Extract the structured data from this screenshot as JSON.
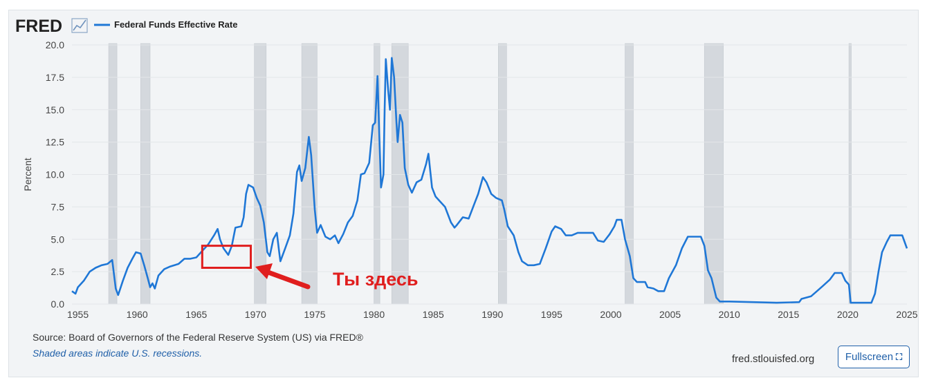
{
  "header": {
    "logo_text": "FRED",
    "logo_icon": "line-chart-icon",
    "series_label": "Federal Funds Effective Rate"
  },
  "annotation": {
    "label": "Ты здесь",
    "color": "#e01e1e"
  },
  "footer": {
    "source": "Source: Board of Governors of the Federal Reserve System (US) via FRED®",
    "recession_note": "Shaded areas indicate U.S. recessions.",
    "site": "fred.stlouisfed.org",
    "fullscreen_label": "Fullscreen",
    "fullscreen_icon": "expand-icon"
  },
  "colors": {
    "line": "#1f77d6",
    "recession": "#d4d8dd",
    "brand_text": "#222222",
    "link": "#1f5fa8"
  },
  "chart_data": {
    "type": "line",
    "title": "",
    "xlabel": "",
    "ylabel": "Percent",
    "xlim": [
      1954.5,
      2025.0
    ],
    "ylim": [
      0,
      20
    ],
    "x_ticks": [
      1955,
      1960,
      1965,
      1970,
      1975,
      1980,
      1985,
      1990,
      1995,
      2000,
      2005,
      2010,
      2015,
      2020,
      2025
    ],
    "x_tick_labels": [
      "1955",
      "1960",
      "1965",
      "1970",
      "1975",
      "1980",
      "1985",
      "1990",
      "1995",
      "2000",
      "2005",
      "2010",
      "2015",
      "2020",
      "2025"
    ],
    "y_ticks": [
      0,
      2.5,
      5,
      7.5,
      10,
      12.5,
      15,
      17.5,
      20
    ],
    "y_tick_labels": [
      "0.0",
      "2.5",
      "5.0",
      "7.5",
      "10.0",
      "12.5",
      "15.0",
      "17.5",
      "20.0"
    ],
    "grid": "horizontal",
    "legend": "top-left",
    "recessions": [
      [
        1957.6,
        1958.3
      ],
      [
        1960.3,
        1961.1
      ],
      [
        1969.9,
        1970.9
      ],
      [
        1973.9,
        1975.2
      ],
      [
        1980.0,
        1980.5
      ],
      [
        1981.5,
        1982.9
      ],
      [
        1990.5,
        1991.2
      ],
      [
        2001.2,
        2001.9
      ],
      [
        2007.9,
        2009.5
      ],
      [
        2020.1,
        2020.3
      ]
    ],
    "highlight_box": {
      "x": [
        1965.5,
        1969.6
      ],
      "y": [
        2.8,
        4.5
      ]
    },
    "series": [
      {
        "name": "Federal Funds Effective Rate",
        "points": [
          [
            1954.5,
            1.0
          ],
          [
            1954.8,
            0.8
          ],
          [
            1955.0,
            1.3
          ],
          [
            1955.5,
            1.8
          ],
          [
            1956.0,
            2.5
          ],
          [
            1956.5,
            2.8
          ],
          [
            1957.0,
            3.0
          ],
          [
            1957.5,
            3.1
          ],
          [
            1957.9,
            3.4
          ],
          [
            1958.2,
            1.2
          ],
          [
            1958.4,
            0.7
          ],
          [
            1958.8,
            1.8
          ],
          [
            1959.2,
            2.8
          ],
          [
            1959.6,
            3.5
          ],
          [
            1959.9,
            4.0
          ],
          [
            1960.3,
            3.9
          ],
          [
            1960.6,
            3.0
          ],
          [
            1960.9,
            2.0
          ],
          [
            1961.1,
            1.3
          ],
          [
            1961.3,
            1.6
          ],
          [
            1961.5,
            1.2
          ],
          [
            1961.8,
            2.2
          ],
          [
            1962.3,
            2.7
          ],
          [
            1962.8,
            2.9
          ],
          [
            1963.5,
            3.1
          ],
          [
            1964.0,
            3.5
          ],
          [
            1964.5,
            3.5
          ],
          [
            1965.0,
            3.6
          ],
          [
            1965.5,
            4.1
          ],
          [
            1966.0,
            4.6
          ],
          [
            1966.5,
            5.3
          ],
          [
            1966.8,
            5.8
          ],
          [
            1967.0,
            5.0
          ],
          [
            1967.3,
            4.3
          ],
          [
            1967.7,
            3.8
          ],
          [
            1968.0,
            4.5
          ],
          [
            1968.3,
            5.9
          ],
          [
            1968.8,
            6.0
          ],
          [
            1969.0,
            6.7
          ],
          [
            1969.2,
            8.5
          ],
          [
            1969.4,
            9.2
          ],
          [
            1969.8,
            9.0
          ],
          [
            1970.1,
            8.2
          ],
          [
            1970.4,
            7.6
          ],
          [
            1970.7,
            6.3
          ],
          [
            1971.0,
            4.0
          ],
          [
            1971.2,
            3.7
          ],
          [
            1971.5,
            5.0
          ],
          [
            1971.8,
            5.5
          ],
          [
            1972.0,
            4.0
          ],
          [
            1972.1,
            3.3
          ],
          [
            1972.5,
            4.3
          ],
          [
            1972.9,
            5.3
          ],
          [
            1973.2,
            7.0
          ],
          [
            1973.5,
            10.2
          ],
          [
            1973.7,
            10.7
          ],
          [
            1973.9,
            9.5
          ],
          [
            1974.2,
            10.5
          ],
          [
            1974.5,
            12.9
          ],
          [
            1974.7,
            11.5
          ],
          [
            1975.0,
            7.3
          ],
          [
            1975.2,
            5.5
          ],
          [
            1975.5,
            6.1
          ],
          [
            1975.9,
            5.2
          ],
          [
            1976.3,
            5.0
          ],
          [
            1976.7,
            5.3
          ],
          [
            1977.0,
            4.7
          ],
          [
            1977.4,
            5.4
          ],
          [
            1977.8,
            6.3
          ],
          [
            1978.2,
            6.8
          ],
          [
            1978.6,
            8.0
          ],
          [
            1978.9,
            10.0
          ],
          [
            1979.2,
            10.1
          ],
          [
            1979.6,
            10.9
          ],
          [
            1979.9,
            13.8
          ],
          [
            1980.1,
            14.0
          ],
          [
            1980.3,
            17.6
          ],
          [
            1980.45,
            13.0
          ],
          [
            1980.6,
            9.0
          ],
          [
            1980.8,
            10.0
          ],
          [
            1980.9,
            15.0
          ],
          [
            1981.0,
            18.9
          ],
          [
            1981.2,
            16.5
          ],
          [
            1981.35,
            15.0
          ],
          [
            1981.5,
            19.0
          ],
          [
            1981.7,
            17.5
          ],
          [
            1981.9,
            14.0
          ],
          [
            1982.0,
            12.5
          ],
          [
            1982.2,
            14.6
          ],
          [
            1982.4,
            14.0
          ],
          [
            1982.6,
            10.5
          ],
          [
            1982.9,
            9.2
          ],
          [
            1983.2,
            8.6
          ],
          [
            1983.6,
            9.4
          ],
          [
            1984.0,
            9.6
          ],
          [
            1984.4,
            10.8
          ],
          [
            1984.6,
            11.6
          ],
          [
            1984.9,
            9.0
          ],
          [
            1985.2,
            8.3
          ],
          [
            1985.6,
            7.9
          ],
          [
            1986.0,
            7.5
          ],
          [
            1986.5,
            6.3
          ],
          [
            1986.8,
            5.9
          ],
          [
            1987.0,
            6.1
          ],
          [
            1987.5,
            6.7
          ],
          [
            1988.0,
            6.6
          ],
          [
            1988.5,
            7.8
          ],
          [
            1988.8,
            8.5
          ],
          [
            1989.2,
            9.8
          ],
          [
            1989.5,
            9.4
          ],
          [
            1989.9,
            8.5
          ],
          [
            1990.3,
            8.2
          ],
          [
            1990.8,
            8.0
          ],
          [
            1991.0,
            7.3
          ],
          [
            1991.3,
            6.0
          ],
          [
            1991.8,
            5.3
          ],
          [
            1992.2,
            4.0
          ],
          [
            1992.5,
            3.3
          ],
          [
            1993.0,
            3.0
          ],
          [
            1993.5,
            3.0
          ],
          [
            1994.0,
            3.1
          ],
          [
            1994.5,
            4.3
          ],
          [
            1995.0,
            5.6
          ],
          [
            1995.3,
            6.0
          ],
          [
            1995.8,
            5.8
          ],
          [
            1996.2,
            5.3
          ],
          [
            1996.7,
            5.3
          ],
          [
            1997.2,
            5.5
          ],
          [
            1997.8,
            5.5
          ],
          [
            1998.5,
            5.5
          ],
          [
            1998.9,
            4.9
          ],
          [
            1999.4,
            4.8
          ],
          [
            1999.9,
            5.4
          ],
          [
            2000.3,
            6.0
          ],
          [
            2000.5,
            6.5
          ],
          [
            2000.9,
            6.5
          ],
          [
            2001.2,
            5.0
          ],
          [
            2001.6,
            3.7
          ],
          [
            2001.9,
            2.0
          ],
          [
            2002.2,
            1.7
          ],
          [
            2002.9,
            1.7
          ],
          [
            2003.1,
            1.3
          ],
          [
            2003.6,
            1.2
          ],
          [
            2004.0,
            1.0
          ],
          [
            2004.5,
            1.0
          ],
          [
            2004.9,
            2.0
          ],
          [
            2005.5,
            3.0
          ],
          [
            2006.0,
            4.3
          ],
          [
            2006.5,
            5.2
          ],
          [
            2007.6,
            5.2
          ],
          [
            2007.9,
            4.5
          ],
          [
            2008.2,
            2.6
          ],
          [
            2008.5,
            2.0
          ],
          [
            2008.9,
            0.5
          ],
          [
            2009.2,
            0.2
          ],
          [
            2010.0,
            0.2
          ],
          [
            2012.0,
            0.15
          ],
          [
            2014.0,
            0.1
          ],
          [
            2015.9,
            0.15
          ],
          [
            2016.1,
            0.4
          ],
          [
            2016.9,
            0.6
          ],
          [
            2017.4,
            1.0
          ],
          [
            2017.9,
            1.4
          ],
          [
            2018.5,
            1.9
          ],
          [
            2018.9,
            2.4
          ],
          [
            2019.5,
            2.4
          ],
          [
            2019.8,
            1.8
          ],
          [
            2020.1,
            1.5
          ],
          [
            2020.25,
            0.1
          ],
          [
            2021.0,
            0.1
          ],
          [
            2022.0,
            0.1
          ],
          [
            2022.3,
            0.8
          ],
          [
            2022.6,
            2.5
          ],
          [
            2022.9,
            4.0
          ],
          [
            2023.3,
            4.8
          ],
          [
            2023.6,
            5.3
          ],
          [
            2024.6,
            5.3
          ],
          [
            2024.8,
            4.8
          ],
          [
            2025.0,
            4.3
          ]
        ]
      }
    ]
  }
}
